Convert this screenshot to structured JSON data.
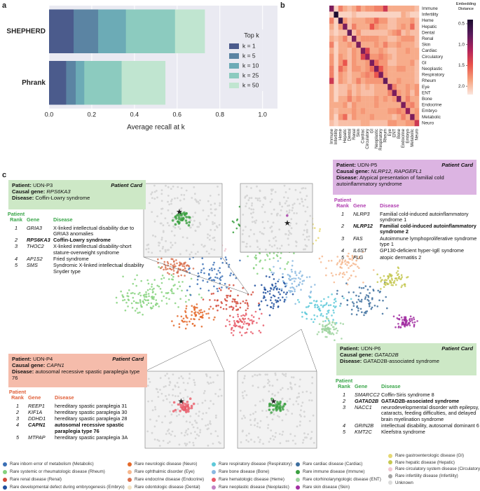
{
  "panel_labels": [
    "a",
    "b",
    "c"
  ],
  "chart_data": [
    {
      "type": "bar",
      "orientation": "horizontal",
      "categories": [
        "SHEPHERD",
        "Phrank"
      ],
      "series": [
        {
          "name": "k = 1",
          "color": "#4b5b8c",
          "values": [
            0.115,
            0.08
          ]
        },
        {
          "name": "k = 5",
          "color": "#5b84a3",
          "values": [
            0.23,
            0.125
          ]
        },
        {
          "name": "k = 10",
          "color": "#6cabb6",
          "values": [
            0.36,
            0.165
          ]
        },
        {
          "name": "k = 25",
          "color": "#8ccbbf",
          "values": [
            0.59,
            0.34
          ]
        },
        {
          "name": "k = 50",
          "color": "#c0e5d0",
          "values": [
            0.73,
            0.545
          ]
        }
      ],
      "legend_title": "Top k",
      "xlabel": "Average recall at k",
      "xlim": [
        0,
        1.07
      ],
      "xticks": [
        {
          "value": 0,
          "label": "0.0"
        },
        0.2,
        0.4,
        0.6,
        0.8,
        {
          "value": 1,
          "label": "1.0"
        }
      ],
      "grid": true,
      "background": "#eaeaf2"
    },
    {
      "type": "heatmap",
      "y_categories": [
        "Immune",
        "Infertility",
        "Heme",
        "Hepatic",
        "Dental",
        "Renal",
        "Skin",
        "Cardiac",
        "Circulatory",
        "GI",
        "Neoplastic",
        "Respiratory",
        "Rheum",
        "Eye",
        "ENT",
        "Bone",
        "Endocrine",
        "Embryo",
        "Metabolic",
        "Neuro"
      ],
      "x_categories": [
        "Immune",
        "Infertility",
        "Heme",
        "Hepatic",
        "Dental",
        "Renal",
        "Skin",
        "Cardiac",
        "Circulatory",
        "GI",
        "Neoplastic",
        "Respiratory",
        "Rheum",
        "Eye",
        "ENT",
        "Bone",
        "Endocrine",
        "Embryo",
        "Metabolic",
        "Neuro"
      ],
      "matrix": [
        [
          0.9,
          2.1,
          1.7,
          1.9,
          2.0,
          1.9,
          1.7,
          1.9,
          1.8,
          1.8,
          1.7,
          1.7,
          1.3,
          1.9,
          1.9,
          1.9,
          1.9,
          1.9,
          1.9,
          2.0
        ],
        [
          2.1,
          0.4,
          2.1,
          2.1,
          2.1,
          2.0,
          2.1,
          2.1,
          2.1,
          2.1,
          2.1,
          2.1,
          2.1,
          2.1,
          2.1,
          2.1,
          1.9,
          2.0,
          2.1,
          2.1
        ],
        [
          1.7,
          2.1,
          0.6,
          1.8,
          2.0,
          1.9,
          1.9,
          1.9,
          1.8,
          1.8,
          1.6,
          1.8,
          1.8,
          2.0,
          2.0,
          1.9,
          1.9,
          1.9,
          1.8,
          2.0
        ],
        [
          1.9,
          2.1,
          1.8,
          0.9,
          2.0,
          1.7,
          1.9,
          1.9,
          1.9,
          1.5,
          1.8,
          1.9,
          1.9,
          2.0,
          2.0,
          1.9,
          1.8,
          1.9,
          1.6,
          2.0
        ],
        [
          2.0,
          2.1,
          2.0,
          2.0,
          0.8,
          2.0,
          1.8,
          2.0,
          2.0,
          2.0,
          2.0,
          2.0,
          2.0,
          1.9,
          1.8,
          1.7,
          2.0,
          1.9,
          2.0,
          2.0
        ],
        [
          1.9,
          2.0,
          1.9,
          1.7,
          2.0,
          0.9,
          1.9,
          1.8,
          1.8,
          1.8,
          1.8,
          1.9,
          1.9,
          2.0,
          2.0,
          1.9,
          1.8,
          1.8,
          1.8,
          2.0
        ],
        [
          1.7,
          2.1,
          1.9,
          1.9,
          1.8,
          1.9,
          0.9,
          1.9,
          1.9,
          1.9,
          1.8,
          1.9,
          1.7,
          1.9,
          1.9,
          1.8,
          1.9,
          1.9,
          1.9,
          2.0
        ],
        [
          1.9,
          2.1,
          1.9,
          1.9,
          2.0,
          1.8,
          1.9,
          0.9,
          1.4,
          1.9,
          1.9,
          1.8,
          1.9,
          2.0,
          2.0,
          1.9,
          1.9,
          1.8,
          1.9,
          1.9
        ],
        [
          1.8,
          2.1,
          1.8,
          1.9,
          2.0,
          1.8,
          1.9,
          1.4,
          1.0,
          1.8,
          1.8,
          1.7,
          1.8,
          1.9,
          2.0,
          1.9,
          1.9,
          1.9,
          1.9,
          1.9
        ],
        [
          1.8,
          2.1,
          1.8,
          1.5,
          2.0,
          1.8,
          1.9,
          1.9,
          1.8,
          0.9,
          1.6,
          1.8,
          1.8,
          2.0,
          2.0,
          1.9,
          1.9,
          1.9,
          1.8,
          2.0
        ],
        [
          1.7,
          2.1,
          1.6,
          1.8,
          2.0,
          1.8,
          1.8,
          1.9,
          1.8,
          1.6,
          0.9,
          1.5,
          1.8,
          1.9,
          1.9,
          1.8,
          1.8,
          1.9,
          1.9,
          2.0
        ],
        [
          1.7,
          2.1,
          1.8,
          1.9,
          2.0,
          1.9,
          1.9,
          1.8,
          1.7,
          1.8,
          1.5,
          0.9,
          1.8,
          1.9,
          1.9,
          1.9,
          1.9,
          1.9,
          1.9,
          2.0
        ],
        [
          1.3,
          2.1,
          1.8,
          1.9,
          2.0,
          1.9,
          1.7,
          1.9,
          1.8,
          1.8,
          1.8,
          1.8,
          0.8,
          1.9,
          1.9,
          1.8,
          1.9,
          1.9,
          1.9,
          2.0
        ],
        [
          1.9,
          2.1,
          2.0,
          2.0,
          1.9,
          2.0,
          1.9,
          2.0,
          1.9,
          2.0,
          1.9,
          1.9,
          1.9,
          0.9,
          1.7,
          1.9,
          1.9,
          1.8,
          1.9,
          1.8
        ],
        [
          1.9,
          2.1,
          2.0,
          2.0,
          1.8,
          2.0,
          1.9,
          2.0,
          2.0,
          2.0,
          1.9,
          1.9,
          1.9,
          1.7,
          0.9,
          1.8,
          1.9,
          1.8,
          2.0,
          1.8
        ],
        [
          1.9,
          2.1,
          1.9,
          1.9,
          1.7,
          1.9,
          1.8,
          1.9,
          1.9,
          1.9,
          1.8,
          1.9,
          1.8,
          1.9,
          1.8,
          0.9,
          1.9,
          1.7,
          1.9,
          1.9
        ],
        [
          1.9,
          1.9,
          1.9,
          1.8,
          2.0,
          1.8,
          1.9,
          1.9,
          1.9,
          1.9,
          1.8,
          1.9,
          1.9,
          1.9,
          1.9,
          1.9,
          0.9,
          1.8,
          1.7,
          1.9
        ],
        [
          1.9,
          2.0,
          1.9,
          1.9,
          1.9,
          1.8,
          1.9,
          1.8,
          1.9,
          1.9,
          1.9,
          1.9,
          1.9,
          1.8,
          1.8,
          1.7,
          1.8,
          1.0,
          1.9,
          1.8
        ],
        [
          1.9,
          2.1,
          1.8,
          1.6,
          2.0,
          1.8,
          1.9,
          1.9,
          1.9,
          1.8,
          1.9,
          1.9,
          1.9,
          1.9,
          2.0,
          1.9,
          1.7,
          1.9,
          0.9,
          1.8
        ],
        [
          2.0,
          2.1,
          2.0,
          2.0,
          2.0,
          2.0,
          2.0,
          1.9,
          1.9,
          2.0,
          2.0,
          2.0,
          2.0,
          1.8,
          1.8,
          1.9,
          1.9,
          1.8,
          1.8,
          1.3
        ]
      ],
      "colorbar_label": "Embedding Distance",
      "zlim": [
        0.4,
        2.2
      ],
      "zticks": [
        0.5,
        {
          "value": 1,
          "label": "1.0"
        },
        1.5,
        {
          "value": 2,
          "label": "2.0"
        }
      ],
      "colormap": [
        "#1b0c2f",
        "#5a1b5c",
        "#b0215b",
        "#e9514a",
        "#f6a07b",
        "#fbe6dd"
      ]
    }
  ],
  "patient_cards": [
    {
      "patient_label": "Patient:",
      "patient": "UDN-P3",
      "card_title": "Patient Card",
      "gene_label": "Causal gene:",
      "genes": "RPS6KA3",
      "disease_label": "Disease:",
      "disease": "Coffin-Lowry syndrome",
      "color": "#cde8c6",
      "accent": "#3aa64a",
      "rank_header": "Patient Rank",
      "gene_header": "Gene",
      "disease_header": "Disease",
      "causal_row": 1,
      "rows": [
        {
          "rank": 1,
          "gene": "GRIA3",
          "disease": "X-linked intellectual disability due to GRIA3 anomalies"
        },
        {
          "rank": 2,
          "gene": "RPS6KA3",
          "disease": "Coffin-Lowry syndrome"
        },
        {
          "rank": 3,
          "gene": "THOC2",
          "disease": "X-linked intellectual disability-short stature-overweight syndrome"
        },
        {
          "rank": 4,
          "gene": "AP1S2",
          "disease": "Fried syndrome"
        },
        {
          "rank": 5,
          "gene": "SMS",
          "disease": "Syndromic X-linked intellectual disability Snyder type"
        }
      ]
    },
    {
      "patient_label": "Patient:",
      "patient": "UDN-P5",
      "card_title": "Patient Card",
      "gene_label": "Causal gene:",
      "genes": "NLRP12, RAPGEFL1",
      "disease_label": "Disease:",
      "disease": "Atypical presentation of familial cold autoinflammatory syndrome",
      "color": "#dcb4e2",
      "accent": "#b03cb0",
      "rank_header": "Patient Rank",
      "gene_header": "Gene",
      "disease_header": "Disease",
      "causal_row": 1,
      "rows": [
        {
          "rank": 1,
          "gene": "NLRP3",
          "disease": "Familial cold-induced autoinflammatory syndrome 1"
        },
        {
          "rank": 2,
          "gene": "NLRP12",
          "disease": "Familial cold-induced autoinflammatory syndrome 2"
        },
        {
          "rank": 3,
          "gene": "FAS",
          "disease": "Autoimmune lymphoproliferative syndrome type 1"
        },
        {
          "rank": 4,
          "gene": "IL6ST",
          "disease": "GP130-deficient hyper-IgE syndrome"
        },
        {
          "rank": 5,
          "gene": "FLG",
          "disease": "atopic dermatitis 2"
        }
      ]
    },
    {
      "patient_label": "Patient:",
      "patient": "UDN-P4",
      "card_title": "Patient Card",
      "gene_label": "Causal gene:",
      "genes": "CAPN1",
      "disease_label": "Disease:",
      "disease": "autosomal recessive spastic paraplegia type 76",
      "color": "#f5bcab",
      "accent": "#e0603a",
      "rank_header": "Patient Rank",
      "gene_header": "Gene",
      "disease_header": "Disease",
      "causal_row": 3,
      "rows": [
        {
          "rank": 1,
          "gene": "REEP1",
          "disease": "hereditary spastic paraplegia 31"
        },
        {
          "rank": 2,
          "gene": "KIF1A",
          "disease": "hereditary spastic paraplegia 30"
        },
        {
          "rank": 3,
          "gene": "DDHD1",
          "disease": "hereditary spastic paraplegia 28"
        },
        {
          "rank": 4,
          "gene": "CAPN1",
          "disease": "autosomal recessive spastic paraplegia type 76"
        },
        {
          "rank": 5,
          "gene": "MTPAP",
          "disease": "hereditary spastic paraplegia 3A"
        }
      ]
    },
    {
      "patient_label": "Patient:",
      "patient": "UDN-P6",
      "card_title": "Patient Card",
      "gene_label": "Causal gene:",
      "genes": "GATAD2B",
      "disease_label": "Disease:",
      "disease": "GATAD2B-associated syndrome",
      "color": "#cde8c6",
      "accent": "#3aa64a",
      "rank_header": "Patient Rank",
      "gene_header": "Gene",
      "disease_header": "Disease",
      "causal_row": 1,
      "rows": [
        {
          "rank": 1,
          "gene": "SMARCC2",
          "disease": "Coffin-Siris syndrome 8"
        },
        {
          "rank": 2,
          "gene": "GATAD2B",
          "disease": "GATAD2B-associated syndrome"
        },
        {
          "rank": 3,
          "gene": "NACC1",
          "disease": "neurodevelopmental disorder with epilepsy, cataracts, feeding difficulties, and delayed brain myelination syndrome"
        },
        {
          "rank": 4,
          "gene": "GRIN2B",
          "disease": "intellectual disability, autosomal dominant 6"
        },
        {
          "rank": 5,
          "gene": "KMT2C",
          "disease": "Kleefstra syndrome"
        }
      ]
    }
  ],
  "legend": [
    [
      {
        "label": "Rare inborn error of metabolism (Metabolic)",
        "color": "#3a6fb5"
      },
      {
        "label": "Rare systemic or rheumatologic disease (Rheum)",
        "color": "#86d27e"
      },
      {
        "label": "Rare renal disease (Renal)",
        "color": "#d24a3a"
      },
      {
        "label": "Rare developmental defect during embryogenesis (Embryo)",
        "color": "#1f4f9e"
      }
    ],
    [
      {
        "label": "Rare neurologic disease (Neuro)",
        "color": "#e4692a"
      },
      {
        "label": "Rare ophthalmic disorder (Eye)",
        "color": "#f6b88f"
      },
      {
        "label": "Rare endocrine disease (Endocrine)",
        "color": "#d9704e"
      },
      {
        "label": "Rare  odontologic disease (Dental)",
        "color": "#f2e2c2"
      }
    ],
    [
      {
        "label": "Rare respiratory disease (Respiratory)",
        "color": "#5ec9d9"
      },
      {
        "label": "Rare bone disease (Bone)",
        "color": "#8ab9e1"
      },
      {
        "label": "Rare hematologic disease (Heme)",
        "color": "#e85a68"
      },
      {
        "label": "Rare neoplastic disease (Neoplastic)",
        "color": "#c282c2"
      }
    ],
    [
      {
        "label": "Rare cardiac disease (Cardiac)",
        "color": "#3d6e9e"
      },
      {
        "label": "Rare immune disease (Immune)",
        "color": "#3aa040"
      },
      {
        "label": "Rare otorhinolaryngologic disease (ENT)",
        "color": "#9fd3a0"
      },
      {
        "label": "Rare skin disease (Skin)",
        "color": "#a22fa2"
      }
    ],
    [
      {
        "label": "Rare gastroenterologic disease (GI)",
        "color": "#e6d872"
      },
      {
        "label": "Rare hepatic disease (Hepatic)",
        "color": "#c6c852"
      },
      {
        "label": "Rare circulatory system disease (Circulatory)",
        "color": "#f1c7d1"
      },
      {
        "label": "Rare infertility disease (Infertility)",
        "color": "#a3a3a3"
      },
      {
        "label": "Unknown",
        "color": "#dcdcdc"
      }
    ]
  ]
}
